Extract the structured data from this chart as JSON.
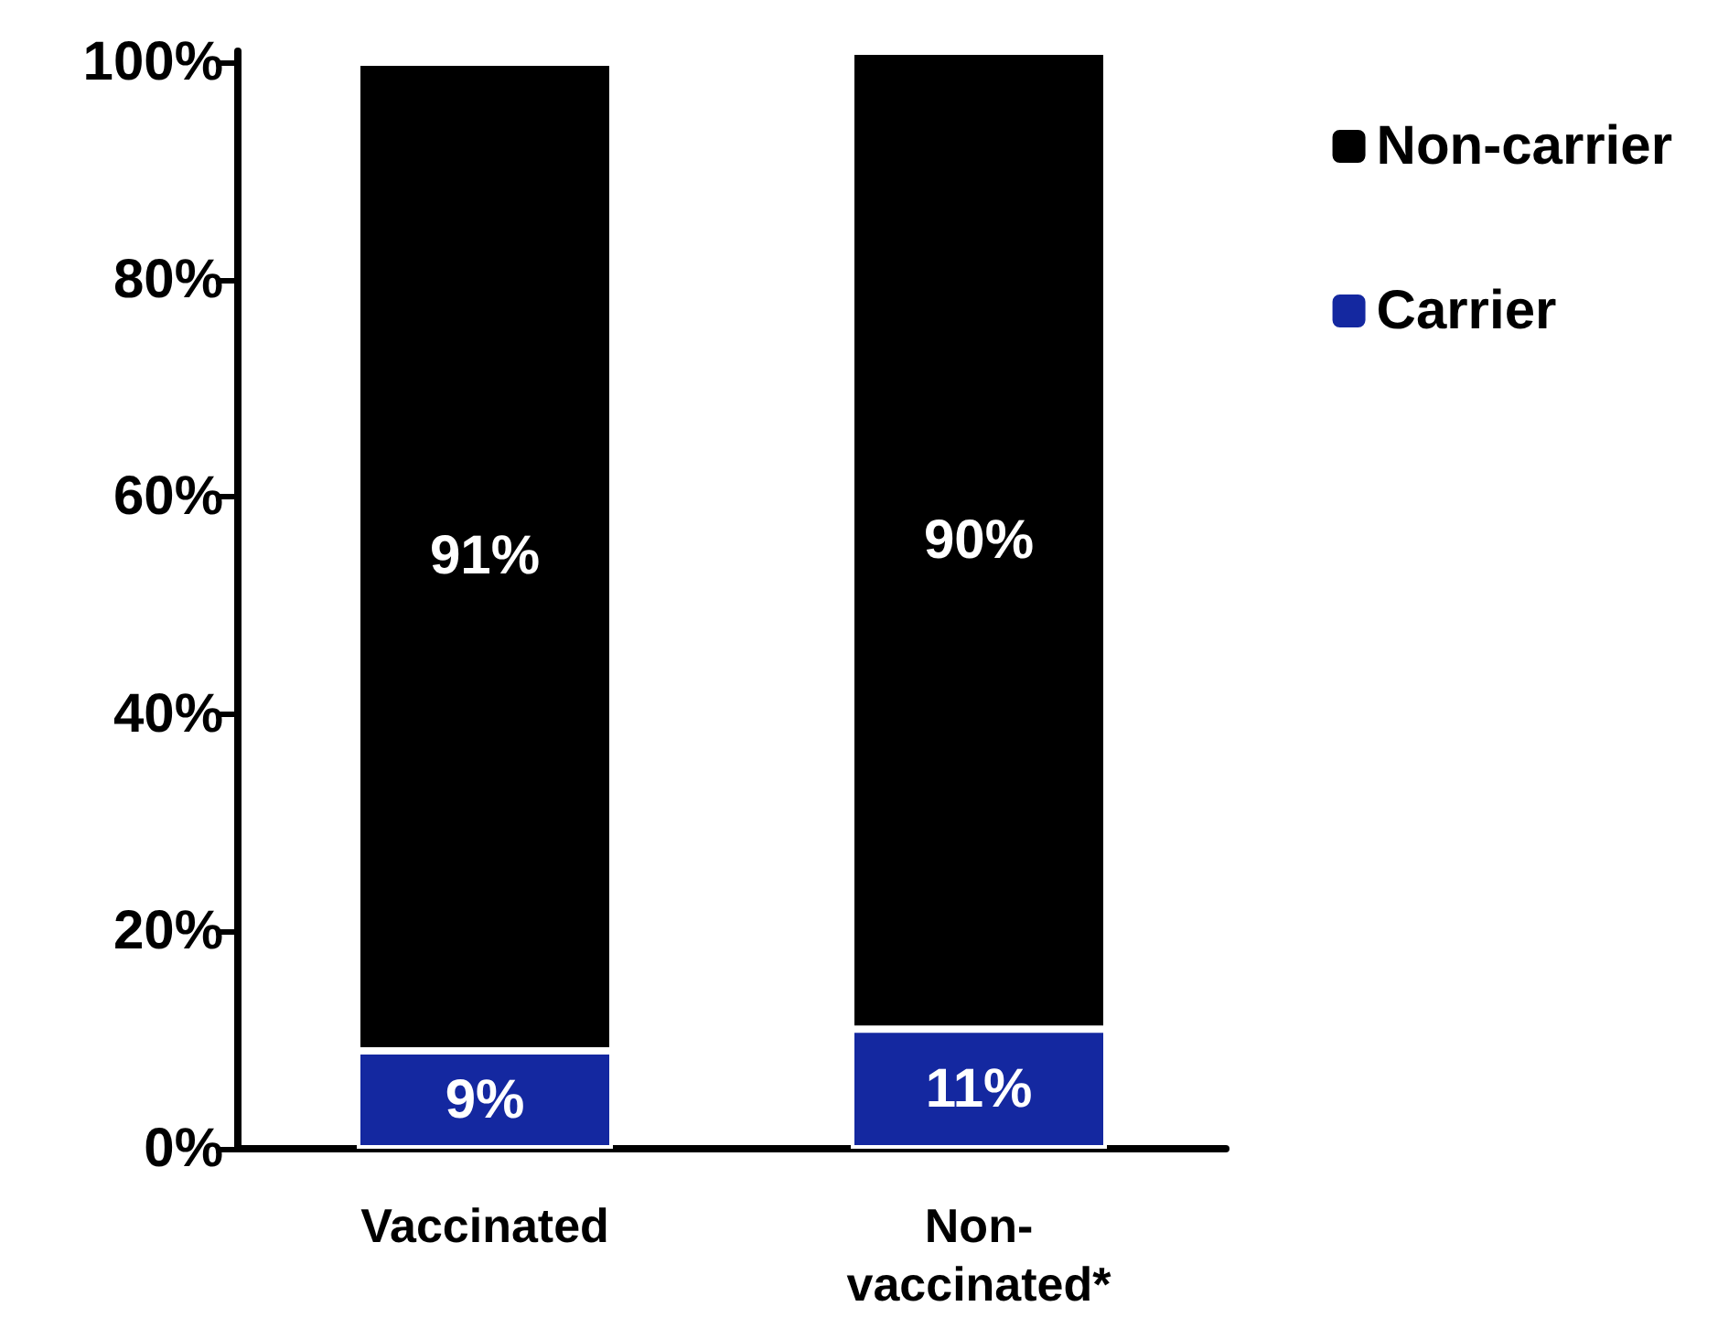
{
  "chart_data": {
    "type": "bar",
    "stacked": true,
    "categories": [
      "Vaccinated",
      "Non-vaccinated*"
    ],
    "series": [
      {
        "name": "Carrier",
        "color": "#1428a0",
        "values": [
          9,
          11
        ],
        "value_labels": [
          "9%",
          "11%"
        ]
      },
      {
        "name": "Non-carrier",
        "color": "#000000",
        "values": [
          91,
          90
        ],
        "value_labels": [
          "91%",
          "90%"
        ]
      }
    ],
    "ylim": [
      0,
      101
    ],
    "yticks": [
      {
        "value": 0,
        "label": "0%"
      },
      {
        "value": 20,
        "label": "20%"
      },
      {
        "value": 40,
        "label": "40%"
      },
      {
        "value": 60,
        "label": "60%"
      },
      {
        "value": 80,
        "label": "80%"
      },
      {
        "value": 100,
        "label": "100%"
      }
    ],
    "grid": false,
    "legend": "top right"
  }
}
